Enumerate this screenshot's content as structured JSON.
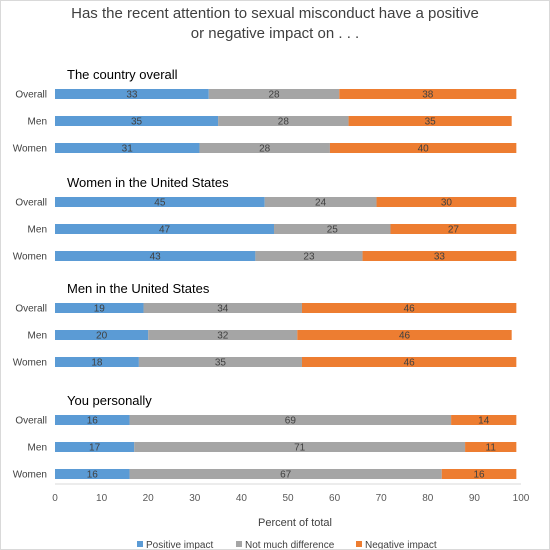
{
  "chart_data": {
    "type": "bar",
    "orientation": "horizontal",
    "stacked": true,
    "title_lines": [
      "Has the recent attention to sexual misconduct have a positive",
      "or negative impact on . . ."
    ],
    "xlabel": "Percent of total",
    "xlim": [
      0,
      100
    ],
    "x_ticks": [
      "0",
      "10",
      "20",
      "30",
      "40",
      "50",
      "60",
      "70",
      "80",
      "90",
      "100"
    ],
    "grid": false,
    "legend_position": "bottom",
    "series": [
      {
        "name": "Positive impact",
        "color": "#5b9bd5"
      },
      {
        "name": "Not much difference",
        "color": "#a5a5a5"
      },
      {
        "name": "Negative impact",
        "color": "#ed7d31"
      }
    ],
    "groups": [
      {
        "title": "The country overall",
        "rows": [
          {
            "label": "Overall",
            "values": [
              33,
              28,
              38
            ]
          },
          {
            "label": "Men",
            "values": [
              35,
              28,
              35
            ]
          },
          {
            "label": "Women",
            "values": [
              31,
              28,
              40
            ]
          }
        ]
      },
      {
        "title": "Women in the United States",
        "rows": [
          {
            "label": "Overall",
            "values": [
              45,
              24,
              30
            ]
          },
          {
            "label": "Men",
            "values": [
              47,
              25,
              27
            ]
          },
          {
            "label": "Women",
            "values": [
              43,
              23,
              33
            ]
          }
        ]
      },
      {
        "title": "Men in the United States",
        "rows": [
          {
            "label": "Overall",
            "values": [
              19,
              34,
              46
            ]
          },
          {
            "label": "Men",
            "values": [
              20,
              32,
              46
            ]
          },
          {
            "label": "Women",
            "values": [
              18,
              35,
              46
            ]
          }
        ]
      },
      {
        "title": "You personally",
        "rows": [
          {
            "label": "Overall",
            "values": [
              16,
              69,
              14
            ]
          },
          {
            "label": "Men",
            "values": [
              17,
              71,
              11
            ]
          },
          {
            "label": "Women",
            "values": [
              16,
              67,
              16
            ]
          }
        ]
      }
    ]
  }
}
